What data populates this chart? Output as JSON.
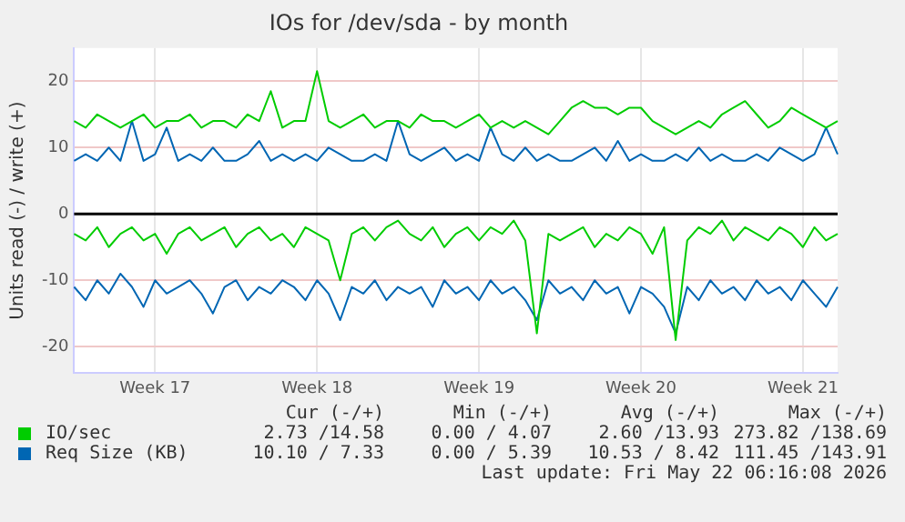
{
  "chart_data": {
    "type": "line",
    "title": "IOs for /dev/sda - by month",
    "ylabel": "Units read (-) / write (+)",
    "categories": [
      null,
      null,
      null,
      null,
      null,
      null,
      null,
      "Week 17",
      null,
      null,
      null,
      null,
      null,
      null,
      null,
      null,
      null,
      null,
      null,
      null,
      null,
      "Week 18",
      null,
      null,
      null,
      null,
      null,
      null,
      null,
      null,
      null,
      null,
      null,
      null,
      null,
      "Week 19",
      null,
      null,
      null,
      null,
      null,
      null,
      null,
      null,
      null,
      null,
      null,
      null,
      null,
      "Week 20",
      null,
      null,
      null,
      null,
      null,
      null,
      null,
      null,
      null,
      null,
      null,
      null,
      null,
      "Week 21",
      null,
      null,
      null
    ],
    "ylim": [
      -24,
      25
    ],
    "yticks": [
      -20,
      -10,
      0,
      10,
      20
    ],
    "grid": true,
    "legend": "bottom",
    "marker": "none",
    "line_style": "solid",
    "ref_lines": [
      {
        "axis": "y",
        "value": 0,
        "color": "#000000"
      }
    ],
    "series": [
      {
        "name": "IO/sec",
        "color": "#00cc00",
        "values": [
          14,
          13,
          15,
          14,
          13,
          14,
          15,
          13,
          14,
          14,
          15,
          13,
          14,
          14,
          13,
          15,
          14,
          18.5,
          13,
          14,
          14,
          21.5,
          14,
          13,
          14,
          15,
          13,
          14,
          14,
          13,
          15,
          14,
          14,
          13,
          14,
          15,
          13,
          14,
          13,
          14,
          13,
          12,
          14,
          16,
          17,
          16,
          16,
          15,
          16,
          16,
          14,
          13,
          12,
          13,
          14,
          13,
          15,
          16,
          17,
          15,
          13,
          14,
          16,
          15,
          14,
          13,
          14
        ]
      },
      {
        "name": "Req Size (KB)",
        "color": "#0066b3",
        "values": [
          8,
          9,
          8,
          10,
          8,
          14,
          8,
          9,
          13,
          8,
          9,
          8,
          10,
          8,
          8,
          9,
          11,
          8,
          9,
          8,
          9,
          8,
          10,
          9,
          8,
          8,
          9,
          8,
          14,
          9,
          8,
          9,
          10,
          8,
          9,
          8,
          13,
          9,
          8,
          10,
          8,
          9,
          8,
          8,
          9,
          10,
          8,
          11,
          8,
          9,
          8,
          8,
          9,
          8,
          10,
          8,
          9,
          8,
          8,
          9,
          8,
          10,
          9,
          8,
          9,
          13,
          9
        ]
      },
      {
        "color": "#00cc00",
        "values": [
          -3,
          -4,
          -2,
          -5,
          -3,
          -2,
          -4,
          -3,
          -6,
          -3,
          -2,
          -4,
          -3,
          -2,
          -5,
          -3,
          -2,
          -4,
          -3,
          -5,
          -2,
          -3,
          -4,
          -10,
          -3,
          -2,
          -4,
          -2,
          -1,
          -3,
          -4,
          -2,
          -5,
          -3,
          -2,
          -4,
          -2,
          -3,
          -1,
          -4,
          -18,
          -3,
          -4,
          -3,
          -2,
          -5,
          -3,
          -4,
          -2,
          -3,
          -6,
          -2,
          -19,
          -4,
          -2,
          -3,
          -1,
          -4,
          -2,
          -3,
          -4,
          -2,
          -3,
          -5,
          -2,
          -4,
          -3
        ]
      },
      {
        "color": "#0066b3",
        "values": [
          -11,
          -13,
          -10,
          -12,
          -9,
          -11,
          -14,
          -10,
          -12,
          -11,
          -10,
          -12,
          -15,
          -11,
          -10,
          -13,
          -11,
          -12,
          -10,
          -11,
          -13,
          -10,
          -12,
          -16,
          -11,
          -12,
          -10,
          -13,
          -11,
          -12,
          -11,
          -14,
          -10,
          -12,
          -11,
          -13,
          -10,
          -12,
          -11,
          -13,
          -16,
          -10,
          -12,
          -11,
          -13,
          -10,
          -12,
          -11,
          -15,
          -11,
          -12,
          -14,
          -18,
          -11,
          -13,
          -10,
          -12,
          -11,
          -13,
          -10,
          -12,
          -11,
          -13,
          -10,
          -12,
          -14,
          -11
        ]
      }
    ],
    "annotations": [
      "Cur (-/+)",
      "Min (-/+)",
      "Avg (-/+)",
      "Max (-/+)",
      "2.73 /14.58",
      "0.00 / 4.07",
      "2.60 /13.93",
      "273.82 /138.69",
      "10.10 / 7.33",
      "0.00 / 5.39",
      "10.53 / 8.42",
      "111.45 /143.91",
      "Last update: Fri May 22 06:16:08 2026"
    ]
  }
}
